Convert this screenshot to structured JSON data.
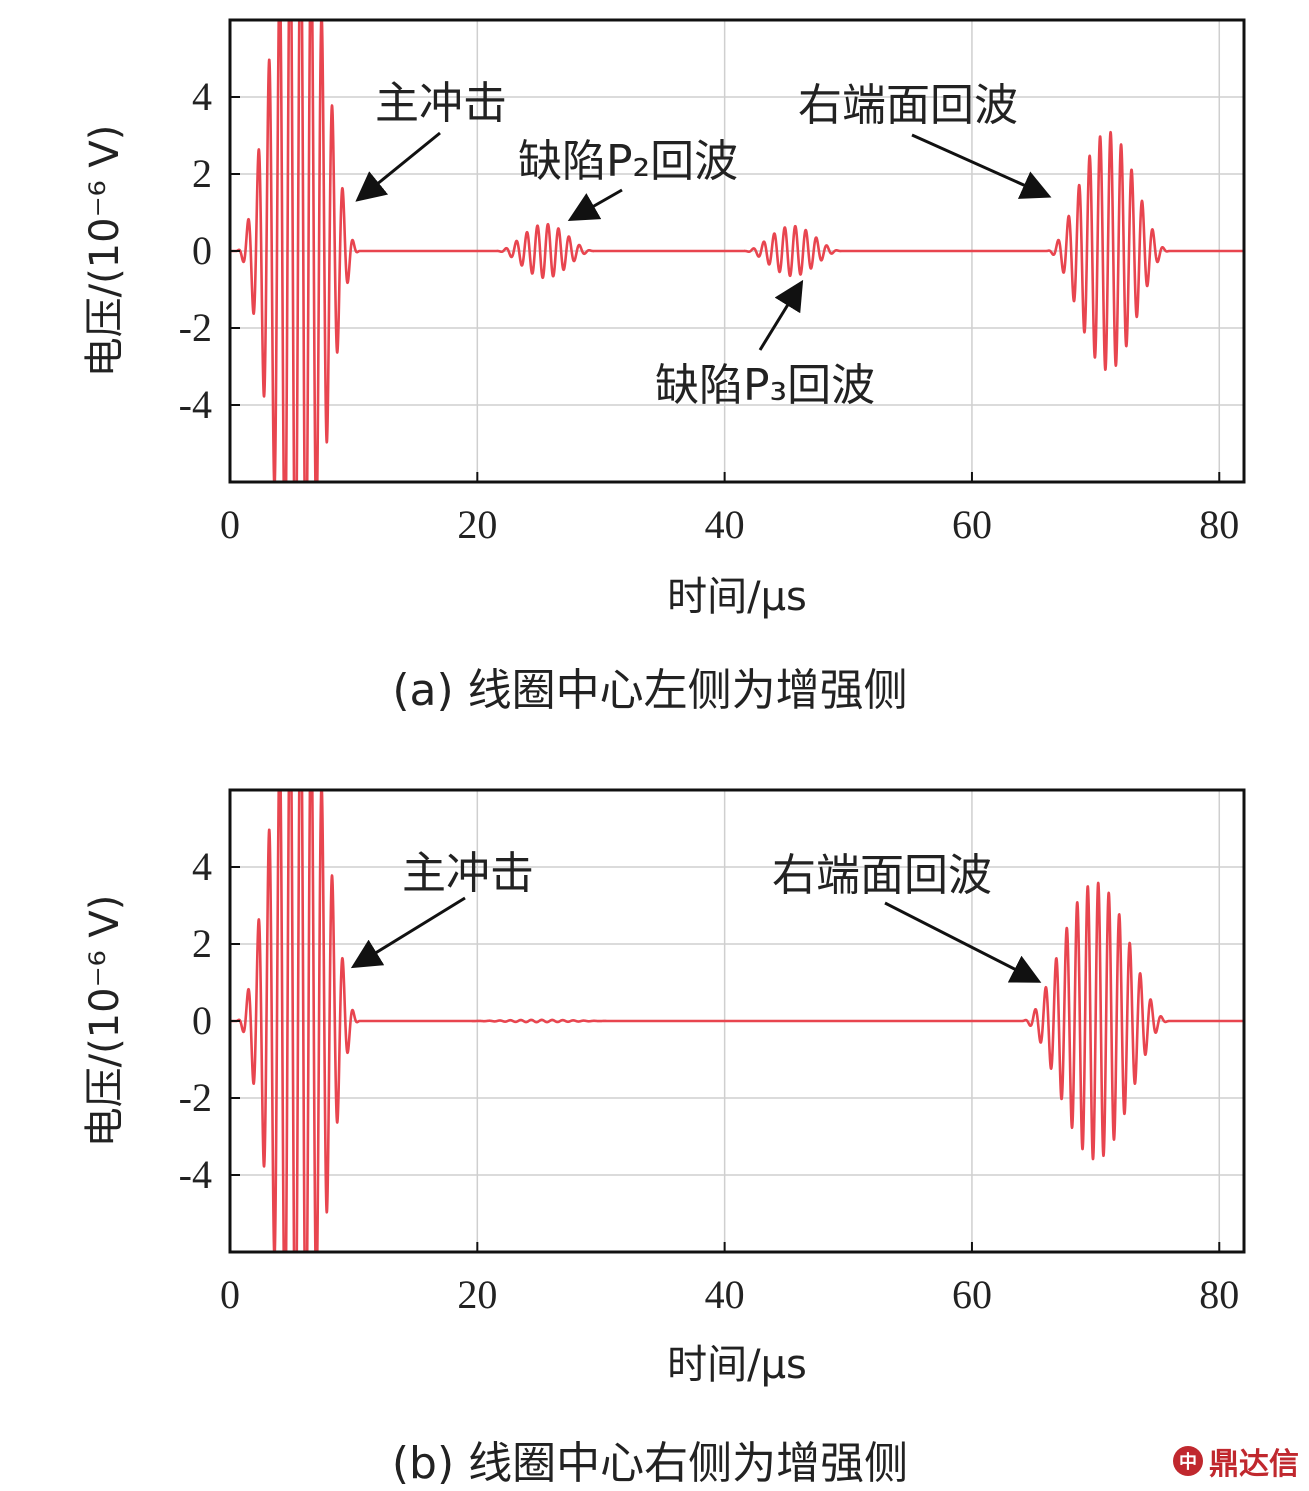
{
  "chart_data": [
    {
      "type": "line",
      "caption": "(a) 线圈中心左侧为增强侧",
      "xlabel": "时间/μs",
      "ylabel": "电压/(10⁻⁶ V)",
      "xlim": [
        0,
        82
      ],
      "ylim": [
        -6,
        6
      ],
      "x_ticks": [
        "0",
        "20",
        "40",
        "60",
        "80"
      ],
      "y_ticks": [
        "4",
        "2",
        "0",
        "-2",
        "-4"
      ],
      "grid": true,
      "series": [
        {
          "color": "#e8454f",
          "wave_packets": [
            {
              "center_us": 5.5,
              "amplitude": 9.0,
              "half_width_us": 5.0,
              "period_us": 0.85
            },
            {
              "center_us": 25.5,
              "amplitude": 0.7,
              "half_width_us": 4.0,
              "period_us": 0.85
            },
            {
              "center_us": 45.5,
              "amplitude": 0.65,
              "half_width_us": 4.0,
              "period_us": 0.85
            },
            {
              "center_us": 71.0,
              "amplitude": 3.1,
              "half_width_us": 5.0,
              "period_us": 0.85
            }
          ]
        }
      ],
      "annotations": [
        {
          "text": "主冲击",
          "target": [
            10.0,
            1.3
          ]
        },
        {
          "text": "缺陷P₂回波",
          "target": [
            27.0,
            0.8
          ]
        },
        {
          "text": "缺陷P₃回波",
          "target": [
            46.0,
            -0.8
          ]
        },
        {
          "text": "右端面回波",
          "target": [
            66.0,
            1.4
          ]
        }
      ]
    },
    {
      "type": "line",
      "caption": "(b) 线圈中心右侧为增强侧",
      "xlabel": "时间/μs",
      "ylabel": "电压/(10⁻⁶ V)",
      "xlim": [
        0,
        82
      ],
      "ylim": [
        -6,
        6
      ],
      "x_ticks": [
        "0",
        "20",
        "40",
        "60",
        "80"
      ],
      "y_ticks": [
        "4",
        "2",
        "0",
        "-2",
        "-4"
      ],
      "grid": true,
      "series": [
        {
          "color": "#e8454f",
          "wave_packets": [
            {
              "center_us": 5.5,
              "amplitude": 9.0,
              "half_width_us": 5.0,
              "period_us": 0.85
            },
            {
              "center_us": 25.0,
              "amplitude": 0.03,
              "half_width_us": 6.0,
              "period_us": 0.85
            },
            {
              "center_us": 70.0,
              "amplitude": 3.6,
              "half_width_us": 6.0,
              "period_us": 0.85
            }
          ]
        }
      ],
      "annotations": [
        {
          "text": "主冲击",
          "target": [
            10.0,
            1.4
          ]
        },
        {
          "text": "右端面回波",
          "target": [
            65.0,
            1.0
          ]
        }
      ]
    }
  ],
  "watermark": {
    "logo_icon": "中",
    "text": "鼎达信"
  }
}
